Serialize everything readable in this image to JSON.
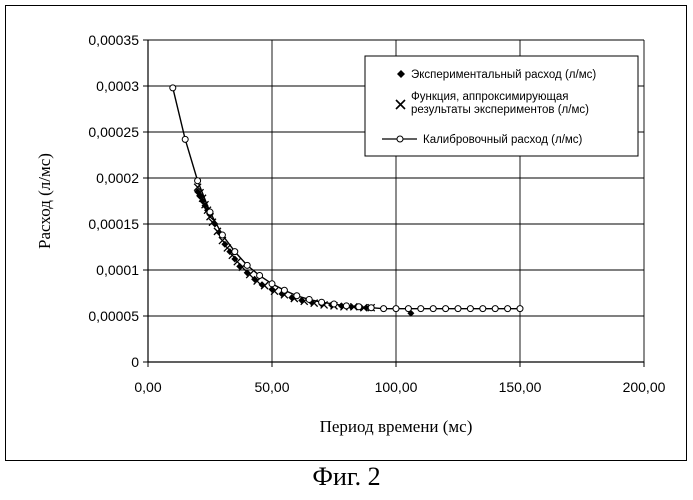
{
  "figure": {
    "caption": "Фиг. 2"
  },
  "chart_data": {
    "type": "scatter",
    "title": "",
    "xlabel": "Период времени (мс)",
    "ylabel": "Расход (л/мс)",
    "xlim": [
      0,
      200
    ],
    "ylim": [
      0,
      0.00035
    ],
    "x_ticks": [
      "0,00",
      "50,00",
      "100,00",
      "150,00",
      "200,00"
    ],
    "y_ticks": [
      "0",
      "0,00005",
      "0,0001",
      "0,00015",
      "0,0002",
      "0,00025",
      "0,0003",
      "0,00035"
    ],
    "grid": true,
    "legend_position": "top-right",
    "colors": {
      "series": "#000000",
      "marker_fill_open": "#ffffff",
      "background": "#ffffff"
    },
    "series": [
      {
        "name": "Экспериментальный расход (л/мс)",
        "style": "diamond",
        "x": [
          20,
          21,
          22,
          23,
          24,
          25,
          27,
          29,
          31,
          33,
          35,
          37,
          40,
          43,
          46,
          50,
          54,
          58,
          62,
          66,
          70,
          74,
          78,
          82,
          86,
          88,
          106
        ],
        "y": [
          0.000185,
          0.00018,
          0.000175,
          0.00017,
          0.000165,
          0.00016,
          0.00015,
          0.00014,
          0.000128,
          0.00012,
          0.000112,
          0.000104,
          9.7e-05,
          9e-05,
          8.4e-05,
          7.9e-05,
          7.4e-05,
          7e-05,
          6.7e-05,
          6.5e-05,
          6.3e-05,
          6.2e-05,
          6.1e-05,
          6e-05,
          5.9e-05,
          5.9e-05,
          5.3e-05
        ]
      },
      {
        "name": "Функция, аппроксимирующая результаты экспериментов (л/мс)",
        "style": "cross",
        "x": [
          20,
          21,
          22,
          23,
          24,
          25,
          26,
          28,
          30,
          32,
          34,
          36,
          38,
          41,
          44,
          47,
          51,
          55,
          59,
          63,
          67,
          71,
          75,
          79,
          83,
          87,
          90
        ],
        "y": [
          0.00019,
          0.000184,
          0.000178,
          0.000171,
          0.000165,
          0.000158,
          0.000152,
          0.000142,
          0.000132,
          0.000124,
          0.000116,
          0.000109,
          0.000103,
          9.5e-05,
          8.8e-05,
          8.3e-05,
          7.7e-05,
          7.3e-05,
          6.9e-05,
          6.6e-05,
          6.4e-05,
          6.2e-05,
          6.1e-05,
          6e-05,
          6e-05,
          5.9e-05,
          5.9e-05
        ]
      },
      {
        "name": "Калибровочный расход (л/мс)",
        "style": "line-circle",
        "x": [
          10,
          15,
          20,
          25,
          30,
          35,
          40,
          45,
          50,
          55,
          60,
          65,
          70,
          75,
          80,
          85,
          90,
          95,
          100,
          105,
          110,
          115,
          120,
          125,
          130,
          135,
          140,
          145,
          150
        ],
        "y": [
          0.000298,
          0.000242,
          0.000197,
          0.000163,
          0.000138,
          0.00012,
          0.000105,
          9.4e-05,
          8.5e-05,
          7.8e-05,
          7.2e-05,
          6.8e-05,
          6.5e-05,
          6.3e-05,
          6.1e-05,
          6e-05,
          5.9e-05,
          5.8e-05,
          5.8e-05,
          5.8e-05,
          5.8e-05,
          5.8e-05,
          5.8e-05,
          5.8e-05,
          5.8e-05,
          5.8e-05,
          5.8e-05,
          5.8e-05,
          5.8e-05
        ]
      }
    ]
  }
}
